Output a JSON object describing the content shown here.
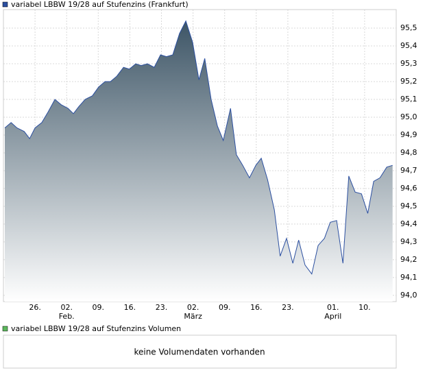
{
  "chart_data": {
    "type": "area",
    "x": [
      0.3,
      1.7,
      3.0,
      4.6,
      5.8,
      7.0,
      8.5,
      9.9,
      11.4,
      12.8,
      14.3,
      15.5,
      16.7,
      18.1,
      19.7,
      21.1,
      22.5,
      23.7,
      25.1,
      26.6,
      27.9,
      29.3,
      30.5,
      31.9,
      33.4,
      34.8,
      36.1,
      37.5,
      39.0,
      40.4,
      41.9,
      43.3,
      44.6,
      46.0,
      47.4,
      48.7,
      50.3,
      51.6,
      53.0,
      54.5,
      55.9,
      57.1,
      58.5,
      60.0,
      61.3,
      62.7,
      64.1,
      65.4,
      66.8,
      68.3,
      69.7,
      71.1,
      72.4,
      73.8,
      75.2,
      76.5,
      77.9,
      79.3,
      80.7,
      82.0,
      83.4,
      84.9,
      86.2
    ],
    "series": [
      {
        "name": "variabel LBBW 19/28 auf Stufenzins (Frankfurt)",
        "color": "#2b4fa0",
        "values": [
          94.94,
          94.97,
          94.94,
          94.92,
          94.88,
          94.94,
          94.97,
          95.03,
          95.1,
          95.07,
          95.05,
          95.02,
          95.06,
          95.1,
          95.12,
          95.17,
          95.2,
          95.2,
          95.23,
          95.28,
          95.27,
          95.3,
          95.29,
          95.3,
          95.28,
          95.35,
          95.34,
          95.35,
          95.47,
          95.54,
          95.42,
          95.21,
          95.33,
          95.1,
          94.95,
          94.87,
          95.05,
          94.79,
          94.73,
          94.66,
          94.73,
          94.77,
          94.65,
          94.48,
          94.22,
          94.32,
          94.18,
          94.31,
          94.17,
          94.12,
          94.28,
          94.32,
          94.41,
          94.42,
          94.18,
          94.67,
          94.58,
          94.57,
          94.46,
          94.64,
          94.66,
          94.72,
          94.73
        ]
      }
    ],
    "area_gradient": [
      "#3d5566",
      "#ffffff"
    ],
    "xlim": [
      0,
      87
    ],
    "xticks": [
      {
        "value": 7,
        "label": "26."
      },
      {
        "value": 14,
        "label": "02."
      },
      {
        "value": 21,
        "label": "09."
      },
      {
        "value": 28,
        "label": "16."
      },
      {
        "value": 35,
        "label": "23."
      },
      {
        "value": 42,
        "label": "02."
      },
      {
        "value": 49,
        "label": "09."
      },
      {
        "value": 56,
        "label": "16."
      },
      {
        "value": 63,
        "label": "23."
      },
      {
        "value": 73,
        "label": "01."
      },
      {
        "value": 80,
        "label": "10."
      }
    ],
    "month_labels": [
      {
        "value": 14,
        "label": "Feb."
      },
      {
        "value": 42,
        "label": "März"
      },
      {
        "value": 73,
        "label": "April"
      }
    ],
    "ylim": [
      93.965,
      95.604
    ],
    "yticks": [
      {
        "value": 94.0,
        "label": "94,0"
      },
      {
        "value": 94.1,
        "label": "94,1"
      },
      {
        "value": 94.2,
        "label": "94,2"
      },
      {
        "value": 94.3,
        "label": "94,3"
      },
      {
        "value": 94.4,
        "label": "94,4"
      },
      {
        "value": 94.5,
        "label": "94,5"
      },
      {
        "value": 94.6,
        "label": "94,6"
      },
      {
        "value": 94.7,
        "label": "94,7"
      },
      {
        "value": 94.8,
        "label": "94,8"
      },
      {
        "value": 94.9,
        "label": "94,9"
      },
      {
        "value": 95.0,
        "label": "95,0"
      },
      {
        "value": 95.1,
        "label": "95,1"
      },
      {
        "value": 95.2,
        "label": "95,2"
      },
      {
        "value": 95.3,
        "label": "95,3"
      },
      {
        "value": 95.4,
        "label": "95,4"
      },
      {
        "value": 95.5,
        "label": "95,5"
      }
    ],
    "grid": true
  },
  "volume_panel": {
    "series_name": "variabel LBBW 19/28 auf Stufenzins Volumen",
    "color": "#5cb85c",
    "message": "keine Volumendaten vorhanden"
  }
}
